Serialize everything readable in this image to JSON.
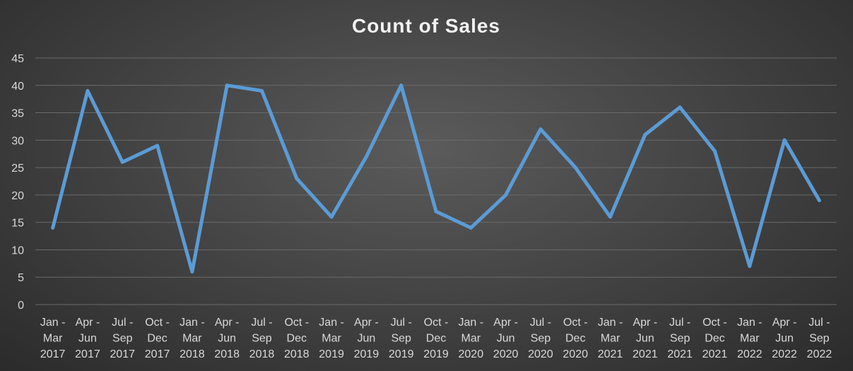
{
  "chart_data": {
    "type": "line",
    "title": "Count of Sales",
    "xlabel": "",
    "ylabel": "",
    "ylim": [
      0,
      45
    ],
    "yticks": [
      "0",
      "5",
      "10",
      "15",
      "20",
      "25",
      "30",
      "35",
      "40",
      "45"
    ],
    "categories": [
      [
        "Jan -",
        "Mar",
        "2017"
      ],
      [
        "Apr -",
        "Jun",
        "2017"
      ],
      [
        "Jul -",
        "Sep",
        "2017"
      ],
      [
        "Oct -",
        "Dec",
        "2017"
      ],
      [
        "Jan -",
        "Mar",
        "2018"
      ],
      [
        "Apr -",
        "Jun",
        "2018"
      ],
      [
        "Jul -",
        "Sep",
        "2018"
      ],
      [
        "Oct -",
        "Dec",
        "2018"
      ],
      [
        "Jan -",
        "Mar",
        "2019"
      ],
      [
        "Apr -",
        "Jun",
        "2019"
      ],
      [
        "Jul -",
        "Sep",
        "2019"
      ],
      [
        "Oct -",
        "Dec",
        "2019"
      ],
      [
        "Jan -",
        "Mar",
        "2020"
      ],
      [
        "Apr -",
        "Jun",
        "2020"
      ],
      [
        "Jul -",
        "Sep",
        "2020"
      ],
      [
        "Oct -",
        "Dec",
        "2020"
      ],
      [
        "Jan -",
        "Mar",
        "2021"
      ],
      [
        "Apr -",
        "Jun",
        "2021"
      ],
      [
        "Jul -",
        "Sep",
        "2021"
      ],
      [
        "Oct -",
        "Dec",
        "2021"
      ],
      [
        "Jan -",
        "Mar",
        "2022"
      ],
      [
        "Apr -",
        "Jun",
        "2022"
      ],
      [
        "Jul -",
        "Sep",
        "2022"
      ]
    ],
    "series": [
      {
        "values": [
          14,
          39,
          26,
          29,
          6,
          40,
          39,
          23,
          16,
          27,
          40,
          17,
          14,
          20,
          32,
          25,
          16,
          31,
          36,
          28,
          7,
          30,
          19
        ],
        "color": "#5b9bd5"
      }
    ],
    "grid": true,
    "legend": "none"
  }
}
